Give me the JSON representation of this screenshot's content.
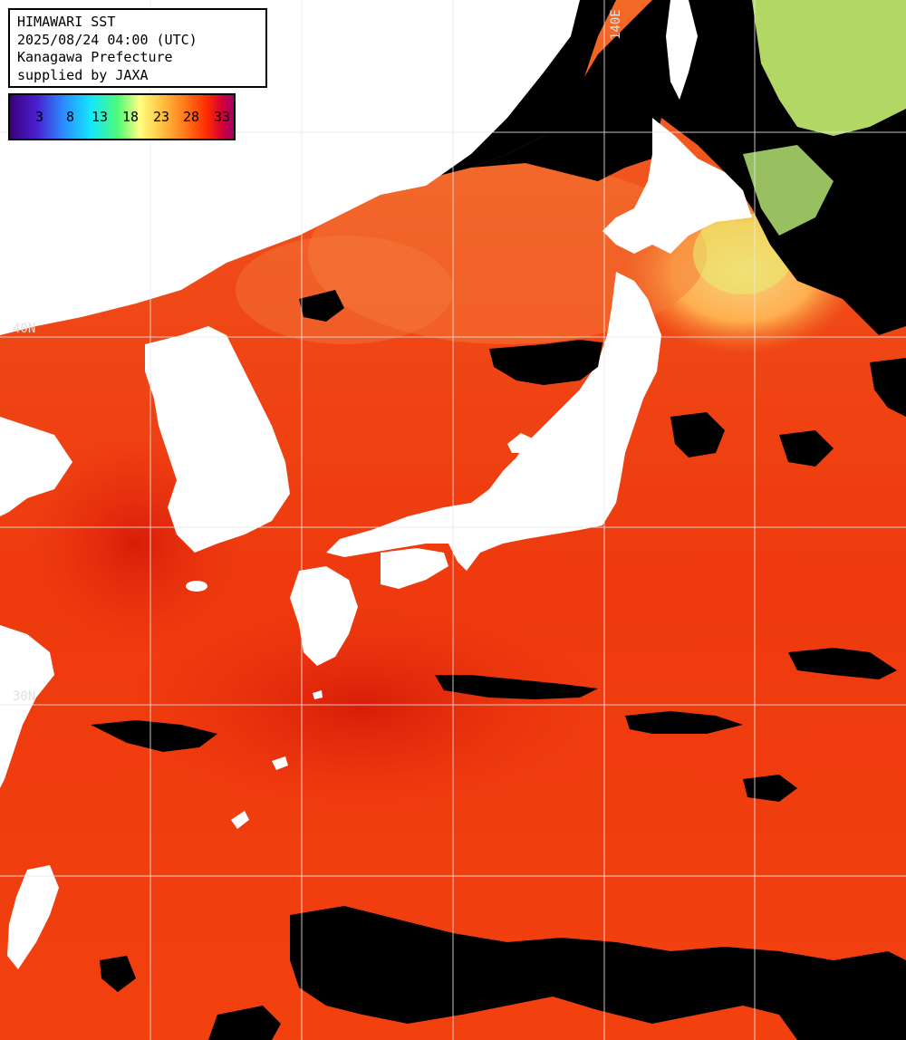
{
  "header": {
    "line1": "HIMAWARI SST",
    "line2": "2025/08/24 04:00 (UTC)",
    "line3": "Kanagawa Prefecture",
    "line4": "supplied by JAXA"
  },
  "legend": {
    "ticks": [
      "3",
      "8",
      "13",
      "18",
      "23",
      "28",
      "33"
    ],
    "colors": [
      "#3b007a",
      "#2a8cff",
      "#15e6ff",
      "#4dfa7a",
      "#ffff80",
      "#ff7a1a",
      "#d0003a"
    ]
  },
  "grid_labels": {
    "lon_140": "140E",
    "lat_40": "40N",
    "lat_30": "30N"
  },
  "colors": {
    "sea": "#f03a10",
    "sea_warm": "#e02a08",
    "sea_cool": "#ff7a30",
    "cold_water": "#c8f070",
    "cloud_land_mask": "#000000",
    "land": "#ffffff",
    "grid": "#e8e8e8"
  }
}
